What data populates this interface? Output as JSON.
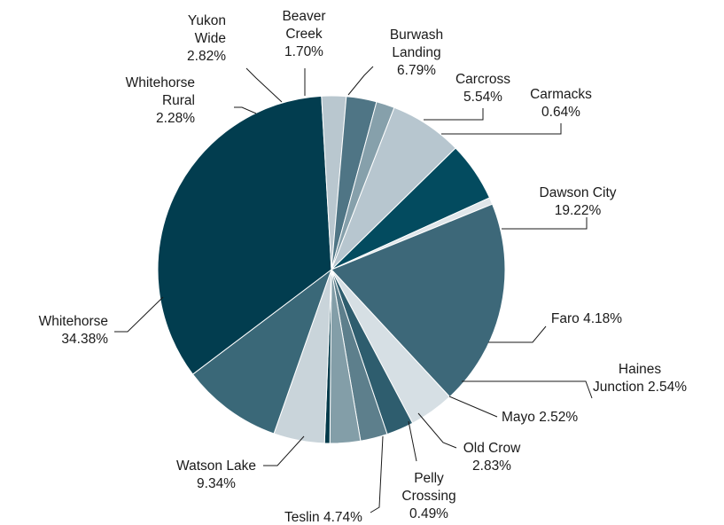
{
  "chart_data": {
    "type": "pie",
    "title": "",
    "slices": [
      {
        "label": "Burwash Landing",
        "value": 6.79,
        "value_label": "6.79%",
        "label_lines": [
          "Burwash",
          "Landing",
          "6.79%"
        ],
        "color": "#b7c6cf"
      },
      {
        "label": "Carcross",
        "value": 5.54,
        "value_label": "5.54%",
        "label_lines": [
          "Carcross",
          "5.54%"
        ],
        "color": "#034b5f"
      },
      {
        "label": "Carmacks",
        "value": 0.64,
        "value_label": "0.64%",
        "label_lines": [
          "Carmacks",
          "0.64%"
        ],
        "color": "#dfe6ea"
      },
      {
        "label": "Dawson City",
        "value": 19.22,
        "value_label": "19.22%",
        "label_lines": [
          "Dawson City",
          "19.22%"
        ],
        "color": "#3d6879"
      },
      {
        "label": "Faro",
        "value": 4.18,
        "value_label": "4.18%",
        "label_lines": [
          "Faro 4.18%"
        ],
        "color": "#d6dfe4"
      },
      {
        "label": "Haines Junction",
        "value": 2.54,
        "value_label": "2.54%",
        "label_lines": [
          "Haines",
          "Junction 2.54%"
        ],
        "color": "#2e5d6e"
      },
      {
        "label": "Mayo",
        "value": 2.52,
        "value_label": "2.52%",
        "label_lines": [
          "Mayo 2.52%"
        ],
        "color": "#5d7f8c"
      },
      {
        "label": "Old Crow",
        "value": 2.83,
        "value_label": "2.83%",
        "label_lines": [
          "Old Crow",
          "2.83%"
        ],
        "color": "#839ea8"
      },
      {
        "label": "Pelly Crossing",
        "value": 0.49,
        "value_label": "0.49%",
        "label_lines": [
          "Pelly",
          "Crossing",
          "0.49%"
        ],
        "color": "#033a4a"
      },
      {
        "label": "Teslin",
        "value": 4.74,
        "value_label": "4.74%",
        "label_lines": [
          "Teslin 4.74%"
        ],
        "color": "#c9d4da"
      },
      {
        "label": "Watson Lake",
        "value": 9.34,
        "value_label": "9.34%",
        "label_lines": [
          "Watson Lake",
          "9.34%"
        ],
        "color": "#3a6878"
      },
      {
        "label": "Whitehorse",
        "value": 34.38,
        "value_label": "34.38%",
        "label_lines": [
          "Whitehorse",
          "34.38%"
        ],
        "color": "#023d4f"
      },
      {
        "label": "Whitehorse Rural",
        "value": 2.28,
        "value_label": "2.28%",
        "label_lines": [
          "Whitehorse",
          "Rural",
          "2.28%"
        ],
        "color": "#b9c7cf"
      },
      {
        "label": "Yukon Wide",
        "value": 2.82,
        "value_label": "2.82%",
        "label_lines": [
          "Yukon",
          "Wide",
          "2.82%"
        ],
        "color": "#4f7585"
      },
      {
        "label": "Beaver Creek",
        "value": 1.7,
        "value_label": "1.70%",
        "label_lines": [
          "Beaver",
          "Creek",
          "1.70%"
        ],
        "color": "#86a0ab"
      }
    ]
  }
}
